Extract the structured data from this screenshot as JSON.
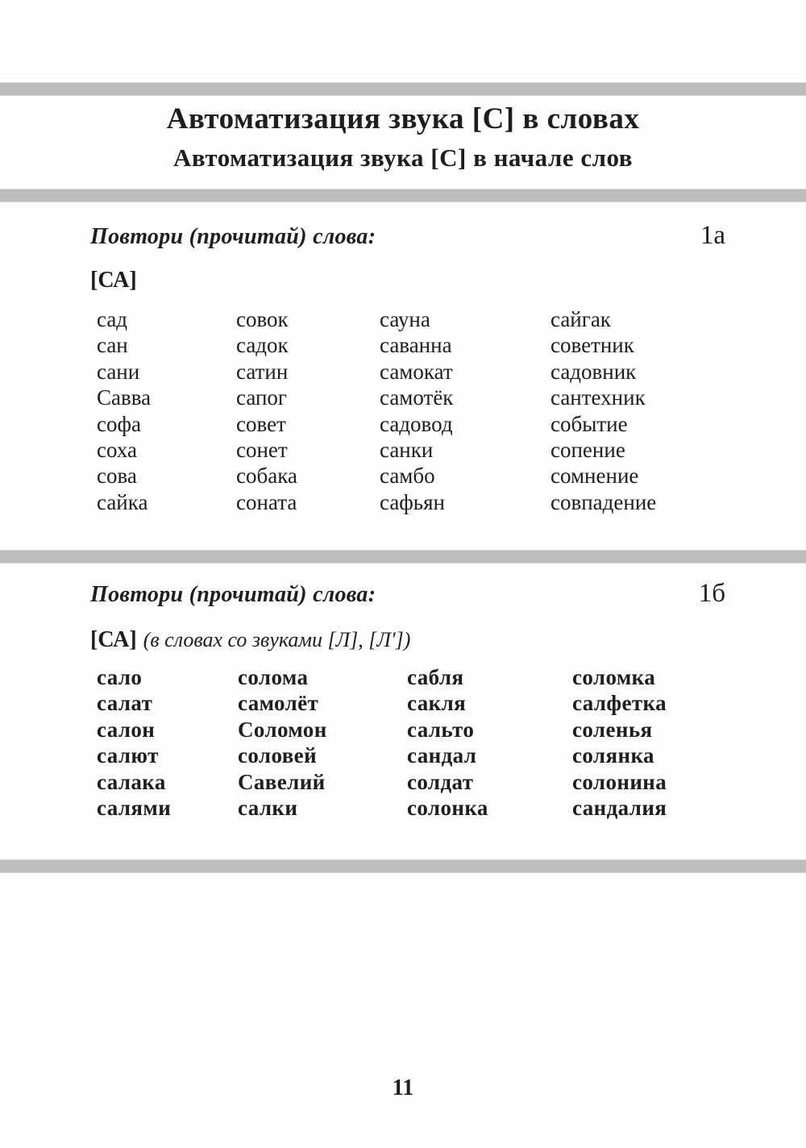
{
  "page": {
    "title_line1": "Автоматизация звука [С] в словах",
    "title_line2": "Автоматизация звука [С] в начале слов",
    "page_number": "11"
  },
  "section_1a": {
    "instruction": "Повтори (прочитай) слова:",
    "label": "1а",
    "sound_group": "[СА]",
    "columns": [
      [
        "сад",
        "сан",
        "сани",
        "Савва",
        "софа",
        "соха",
        "сова",
        "сайка"
      ],
      [
        "совок",
        "садок",
        "сатин",
        "сапог",
        "совет",
        "сонет",
        "собака",
        "соната"
      ],
      [
        "сауна",
        "саванна",
        "самокат",
        "самотёк",
        "садовод",
        "санки",
        "самбо",
        "сафьян"
      ],
      [
        "сайгак",
        "советник",
        "садовник",
        "сантехник",
        "событие",
        "сопение",
        "сомнение",
        "совпадение"
      ]
    ]
  },
  "section_1b": {
    "instruction": "Повтори (прочитай) слова:",
    "label": "1б",
    "sound_group": "[СА]",
    "sound_note": "(в словах со звуками [Л], [Л'])",
    "columns": [
      [
        "сало",
        "салат",
        "салон",
        "салют",
        "салака",
        "салями"
      ],
      [
        "солома",
        "самолёт",
        "Соломон",
        "соловей",
        "Савелий",
        "салки"
      ],
      [
        "сабля",
        "сакля",
        "сальто",
        "сандал",
        "солдат",
        "солонка"
      ],
      [
        "соломка",
        "салфетка",
        "соленья",
        "солянка",
        "солонина",
        "сандалия"
      ]
    ]
  },
  "colors": {
    "separator_bar": "#bdbdbd",
    "text": "#1e1e1e",
    "background": "#fdfdfd"
  }
}
